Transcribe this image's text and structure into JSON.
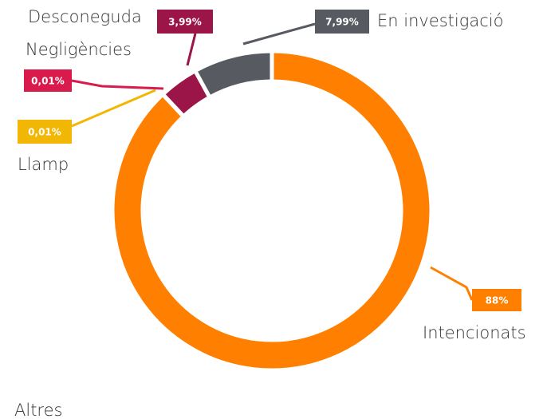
{
  "chart_data": {
    "type": "donut",
    "categories": [
      "Intencionats",
      "Altres",
      "Llamp",
      "Negligències",
      "Desconeguda",
      "En investigació"
    ],
    "values": [
      88,
      0,
      0.01,
      0.01,
      3.99,
      7.99
    ],
    "value_labels": [
      "88%",
      null,
      "0,01%",
      "0,01%",
      "3,99%",
      "7,99%"
    ],
    "colors": [
      "#ff8000",
      "#888888",
      "#f2b705",
      "#d81b4c",
      "#9c1548",
      "#575b61"
    ]
  }
}
